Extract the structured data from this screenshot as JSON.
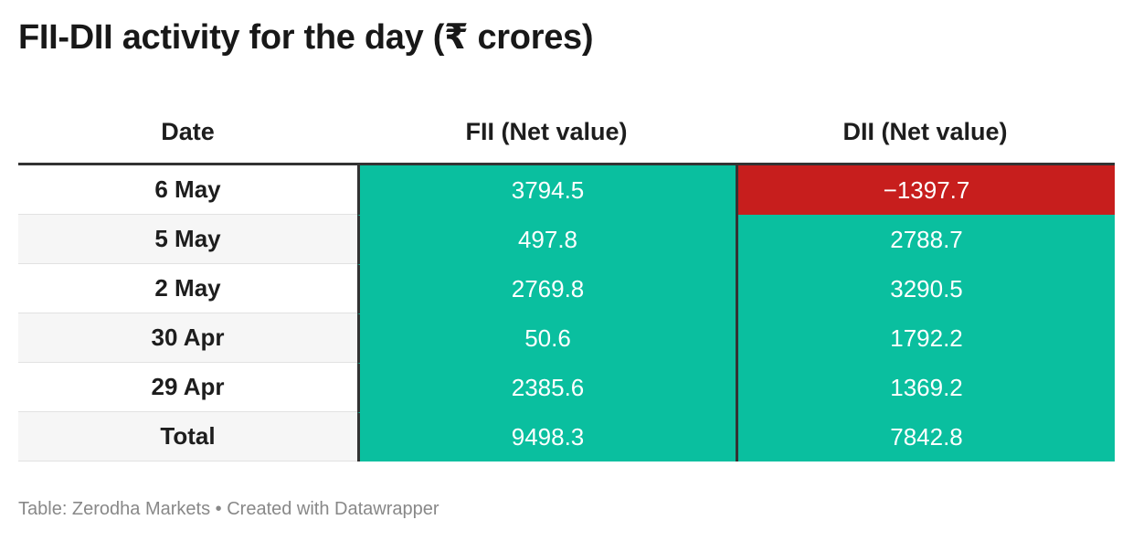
{
  "title": "FII-DII activity for the day (₹ crores)",
  "footer": "Table: Zerodha Markets • Created with Datawrapper",
  "colors": {
    "positive": "#0abf9f",
    "negative": "#c71e1d",
    "row_odd": "#ffffff",
    "row_even": "#f6f6f6"
  },
  "chart_data": {
    "type": "table",
    "columns": [
      "Date",
      "FII (Net value)",
      "DII (Net value)"
    ],
    "rows": [
      {
        "date": "6 May",
        "fii": "3794.5",
        "dii": "−1397.7"
      },
      {
        "date": "5 May",
        "fii": "497.8",
        "dii": "2788.7"
      },
      {
        "date": "2 May",
        "fii": "2769.8",
        "dii": "3290.5"
      },
      {
        "date": "30 Apr",
        "fii": "50.6",
        "dii": "1792.2"
      },
      {
        "date": "29 Apr",
        "fii": "2385.6",
        "dii": "1369.2"
      },
      {
        "date": "Total",
        "fii": "9498.3",
        "dii": "7842.8"
      }
    ]
  }
}
